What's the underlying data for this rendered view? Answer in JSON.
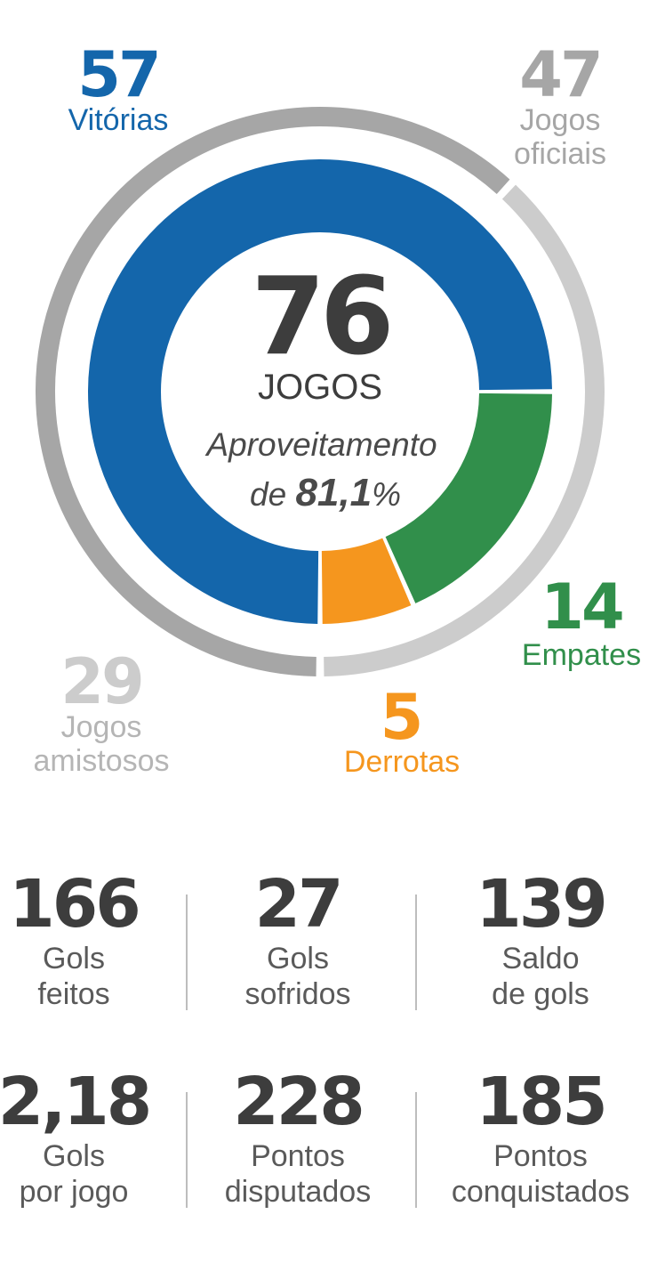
{
  "chart_data": {
    "type": "donut",
    "outer_ring": [
      {
        "name": "Jogos oficiais",
        "value": 47,
        "display_value": "47",
        "label_lines": [
          "Jogos",
          "oficiais"
        ],
        "color": "#a6a6a6"
      },
      {
        "name": "Jogos amistosos",
        "value": 29,
        "display_value": "29",
        "label_lines": [
          "Jogos",
          "amistosos"
        ],
        "color": "#cccccc"
      }
    ],
    "inner_ring": [
      {
        "name": "Vitórias",
        "value": 57,
        "display_value": "57",
        "label_lines": [
          "Vitórias"
        ],
        "color": "#1466ab"
      },
      {
        "name": "Empates",
        "value": 14,
        "display_value": "14",
        "label_lines": [
          "Empates"
        ],
        "color": "#318f4b"
      },
      {
        "name": "Derrotas",
        "value": 5,
        "display_value": "5",
        "label_lines": [
          "Derrotas"
        ],
        "color": "#f5961e"
      }
    ],
    "center": {
      "total": "76",
      "total_label": "JOGOS",
      "line1": "Aproveitamento",
      "line2_prefix": "de ",
      "line2_value": "81,1",
      "line2_suffix": "%"
    }
  },
  "stats": [
    {
      "value": "166",
      "line1": "Gols",
      "line2": "feitos"
    },
    {
      "value": "27",
      "line1": "Gols",
      "line2": "sofridos"
    },
    {
      "value": "139",
      "line1": "Saldo",
      "line2": "de gols"
    },
    {
      "value": "2,18",
      "line1": "Gols",
      "line2": "por jogo"
    },
    {
      "value": "228",
      "line1": "Pontos",
      "line2": "disputados"
    },
    {
      "value": "185",
      "line1": "Pontos",
      "line2": "conquistados"
    }
  ],
  "colors": {
    "number_dark": "#3d3d3d",
    "label_gray": "#5a5a5a",
    "divider": "#bdbdbd"
  }
}
